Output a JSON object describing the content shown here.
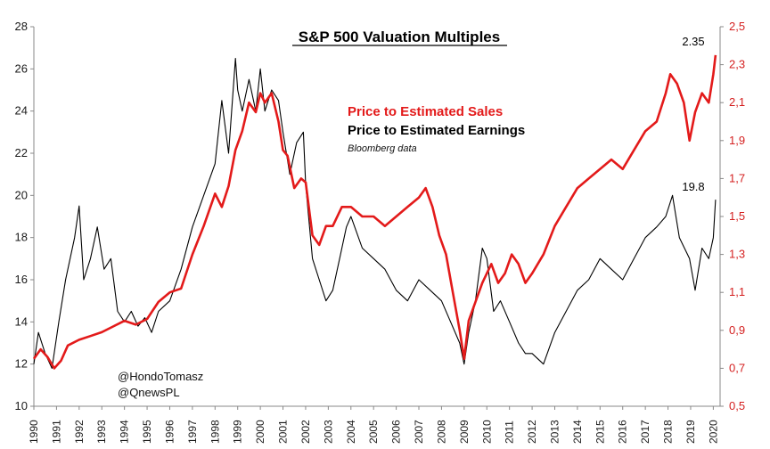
{
  "chart_data": {
    "type": "line",
    "title": "S&P 500 Valuation Multiples",
    "source": "Bloomberg data",
    "handles": [
      "@HondoTomasz",
      "@QnewsPL"
    ],
    "colors": {
      "sales": "#e31a1a",
      "earnings": "#000000",
      "right_axis": "#d41f1f"
    },
    "grid": false,
    "x_ticks": [
      "1990",
      "1991",
      "1992",
      "1993",
      "1994",
      "1995",
      "1996",
      "1997",
      "1998",
      "1999",
      "2000",
      "2001",
      "2002",
      "2003",
      "2004",
      "2005",
      "2006",
      "2007",
      "2008",
      "2009",
      "2010",
      "2011",
      "2012",
      "2013",
      "2014",
      "2015",
      "2016",
      "2017",
      "2018",
      "2019",
      "2020"
    ],
    "xlim": [
      1990,
      2020.3
    ],
    "y_left": {
      "ylim": [
        10,
        28
      ],
      "ticks": [
        "10",
        "12",
        "14",
        "16",
        "18",
        "20",
        "22",
        "24",
        "26",
        "28"
      ]
    },
    "y_right": {
      "ylim": [
        0.5,
        2.5
      ],
      "ticks": [
        "0,5",
        "0,7",
        "0,9",
        "1,1",
        "1,3",
        "1,5",
        "1,7",
        "1,9",
        "2,1",
        "2,3",
        "2,5"
      ]
    },
    "series": [
      {
        "name": "Price to Estimated Sales",
        "axis": "right",
        "end_label": "2.35",
        "x": [
          1990.0,
          1990.3,
          1990.6,
          1990.9,
          1991.2,
          1991.5,
          1992.0,
          1992.5,
          1993.0,
          1993.5,
          1994.0,
          1994.5,
          1995.0,
          1995.5,
          1996.0,
          1996.5,
          1997.0,
          1997.5,
          1998.0,
          1998.3,
          1998.6,
          1998.9,
          1999.2,
          1999.5,
          1999.8,
          2000.0,
          2000.2,
          2000.5,
          2000.8,
          2001.0,
          2001.2,
          2001.5,
          2001.8,
          2002.0,
          2002.3,
          2002.6,
          2002.9,
          2003.2,
          2003.6,
          2004.0,
          2004.5,
          2005.0,
          2005.5,
          2006.0,
          2006.5,
          2007.0,
          2007.3,
          2007.6,
          2007.9,
          2008.2,
          2008.5,
          2008.8,
          2009.0,
          2009.2,
          2009.5,
          2009.8,
          2010.2,
          2010.5,
          2010.8,
          2011.1,
          2011.4,
          2011.7,
          2012.0,
          2012.5,
          2013.0,
          2013.5,
          2014.0,
          2014.5,
          2015.0,
          2015.5,
          2016.0,
          2016.5,
          2017.0,
          2017.5,
          2017.9,
          2018.1,
          2018.4,
          2018.7,
          2018.95,
          2019.2,
          2019.5,
          2019.8,
          2020.0,
          2020.1
        ],
        "values": [
          0.75,
          0.8,
          0.76,
          0.7,
          0.74,
          0.82,
          0.85,
          0.87,
          0.89,
          0.92,
          0.95,
          0.93,
          0.96,
          1.05,
          1.1,
          1.12,
          1.3,
          1.45,
          1.62,
          1.55,
          1.66,
          1.85,
          1.95,
          2.1,
          2.05,
          2.15,
          2.1,
          2.15,
          2.0,
          1.85,
          1.82,
          1.65,
          1.7,
          1.68,
          1.4,
          1.35,
          1.45,
          1.45,
          1.55,
          1.55,
          1.5,
          1.5,
          1.45,
          1.5,
          1.55,
          1.6,
          1.65,
          1.55,
          1.4,
          1.3,
          1.1,
          0.9,
          0.75,
          0.95,
          1.05,
          1.15,
          1.25,
          1.15,
          1.2,
          1.3,
          1.25,
          1.15,
          1.2,
          1.3,
          1.45,
          1.55,
          1.65,
          1.7,
          1.75,
          1.8,
          1.75,
          1.85,
          1.95,
          2.0,
          2.15,
          2.25,
          2.2,
          2.1,
          1.9,
          2.05,
          2.15,
          2.1,
          2.25,
          2.35
        ]
      },
      {
        "name": "Price to Estimated Earnings",
        "axis": "left",
        "end_label": "19.8",
        "x": [
          1990.0,
          1990.2,
          1990.5,
          1990.8,
          1991.1,
          1991.4,
          1991.8,
          1992.0,
          1992.2,
          1992.5,
          1992.8,
          1993.1,
          1993.4,
          1993.7,
          1994.0,
          1994.3,
          1994.6,
          1994.9,
          1995.2,
          1995.5,
          1996.0,
          1996.5,
          1997.0,
          1997.5,
          1998.0,
          1998.3,
          1998.6,
          1998.9,
          1999.0,
          1999.2,
          1999.5,
          1999.8,
          2000.0,
          2000.2,
          2000.5,
          2000.8,
          2001.0,
          2001.3,
          2001.6,
          2001.9,
          2002.0,
          2002.3,
          2002.6,
          2002.9,
          2003.2,
          2003.5,
          2003.8,
          2004.0,
          2004.5,
          2005.0,
          2005.5,
          2006.0,
          2006.5,
          2007.0,
          2007.5,
          2008.0,
          2008.4,
          2008.8,
          2009.0,
          2009.2,
          2009.5,
          2009.8,
          2010.0,
          2010.3,
          2010.6,
          2011.0,
          2011.4,
          2011.7,
          2012.0,
          2012.5,
          2013.0,
          2013.5,
          2014.0,
          2014.5,
          2015.0,
          2015.5,
          2016.0,
          2016.5,
          2017.0,
          2017.5,
          2017.9,
          2018.2,
          2018.5,
          2018.95,
          2019.2,
          2019.5,
          2019.8,
          2020.0,
          2020.1
        ],
        "values": [
          12.0,
          13.5,
          12.5,
          11.8,
          14.0,
          16.0,
          18.0,
          19.5,
          16.0,
          17.0,
          18.5,
          16.5,
          17.0,
          14.5,
          14.0,
          14.5,
          13.8,
          14.2,
          13.5,
          14.5,
          15.0,
          16.5,
          18.5,
          20.0,
          21.5,
          24.5,
          22.0,
          26.5,
          25.0,
          24.0,
          25.5,
          24.0,
          26.0,
          24.0,
          25.0,
          24.5,
          23.0,
          21.0,
          22.5,
          23.0,
          20.5,
          17.0,
          16.0,
          15.0,
          15.5,
          17.0,
          18.5,
          19.0,
          17.5,
          17.0,
          16.5,
          15.5,
          15.0,
          16.0,
          15.5,
          15.0,
          14.0,
          13.0,
          12.0,
          13.5,
          15.0,
          17.5,
          17.0,
          14.5,
          15.0,
          14.0,
          13.0,
          12.5,
          12.5,
          12.0,
          13.5,
          14.5,
          15.5,
          16.0,
          17.0,
          16.5,
          16.0,
          17.0,
          18.0,
          18.5,
          19.0,
          20.0,
          18.0,
          17.0,
          15.5,
          17.5,
          17.0,
          18.0,
          19.8
        ]
      }
    ]
  }
}
